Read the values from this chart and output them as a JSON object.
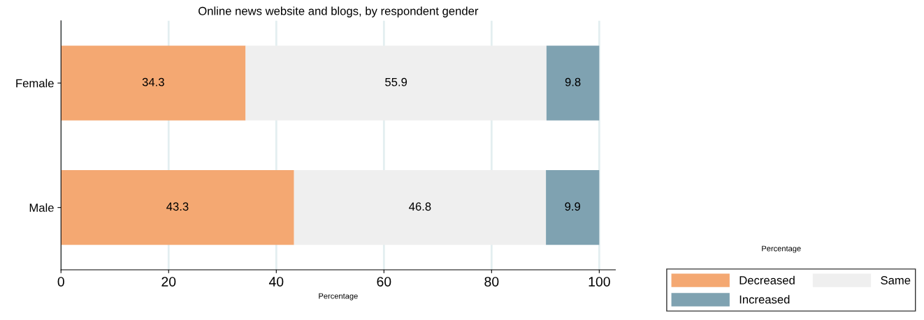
{
  "chart_data": {
    "type": "bar",
    "orientation": "horizontal",
    "stacked": true,
    "title": "Online news website and blogs, by respondent gender",
    "xlabel": "Percentage",
    "legend_title": "Percentage",
    "categories": [
      "Female",
      "Male"
    ],
    "series": [
      {
        "name": "Decreased",
        "color": "#f4a872",
        "values": [
          34.3,
          43.3
        ]
      },
      {
        "name": "Same",
        "color": "#efefef",
        "values": [
          55.9,
          46.8
        ]
      },
      {
        "name": "Increased",
        "color": "#7fa2b1",
        "values": [
          9.8,
          9.9
        ]
      }
    ],
    "data_labels": true,
    "xlim": [
      0,
      103
    ],
    "xticks": [
      0,
      20,
      40,
      60,
      80,
      100
    ],
    "grid": "x",
    "legend": "bottom right"
  }
}
